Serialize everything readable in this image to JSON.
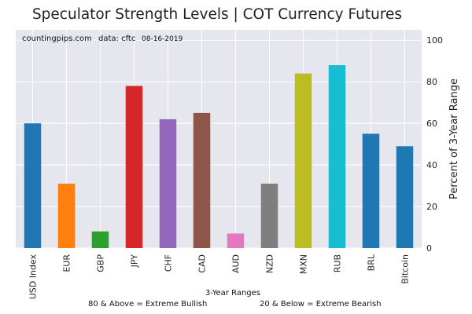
{
  "colors": {
    "plot_background": "#e6e6ef",
    "grid": "#ffffff",
    "text": "#222222"
  },
  "header": {
    "title": "Speculator Strength Levels | COT Currency Futures"
  },
  "annotations": {
    "source": "countingpips.com",
    "data_label": "data: cftc",
    "date": "08-16-2019"
  },
  "footer": {
    "bullish_note": "80 & Above = Extreme Bullish",
    "bearish_note": "20 & Below = Extreme Bearish"
  },
  "chart_data": {
    "type": "bar",
    "title": "Speculator Strength Levels | COT Currency Futures",
    "xlabel": "3-Year Ranges",
    "ylabel": "Percent of 3-Year Range",
    "yaxis_side": "right",
    "ylim": [
      0,
      105
    ],
    "yticks": [
      0,
      20,
      40,
      60,
      80,
      100
    ],
    "grid": true,
    "categories": [
      "USD Index",
      "EUR",
      "GBP",
      "JPY",
      "CHF",
      "CAD",
      "AUD",
      "NZD",
      "MXN",
      "RUB",
      "BRL",
      "Bitcoin"
    ],
    "values": [
      60,
      31,
      8,
      78,
      62,
      65,
      7,
      31,
      84,
      88,
      55,
      49
    ],
    "bar_colors": [
      "#1f77b4",
      "#ff7f0e",
      "#2ca02c",
      "#d62728",
      "#9467bd",
      "#8c564b",
      "#e377c2",
      "#7f7f7f",
      "#bcbd22",
      "#17becf",
      "#1f77b4",
      "#1f77b4"
    ]
  }
}
